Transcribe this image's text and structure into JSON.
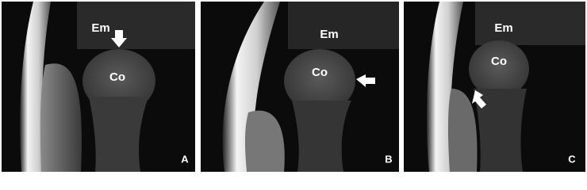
{
  "panels": [
    {
      "em": "Em",
      "co": "Co",
      "letter": "A"
    },
    {
      "em": "Em",
      "co": "Co",
      "letter": "B"
    },
    {
      "em": "Em",
      "co": "Co",
      "letter": "C"
    }
  ]
}
